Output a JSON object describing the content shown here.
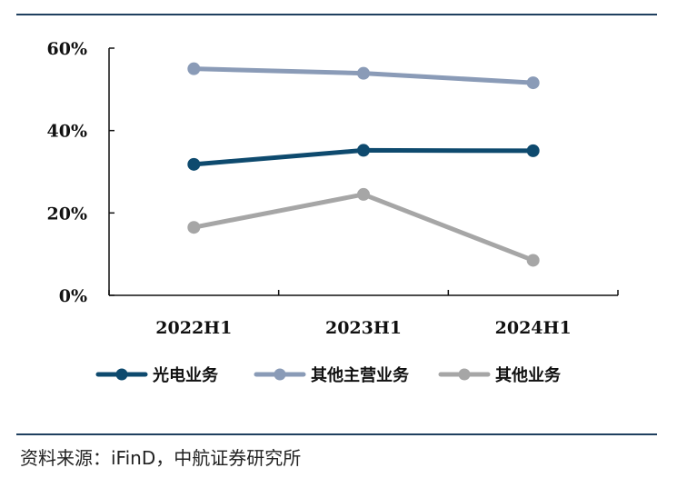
{
  "chart_data": {
    "type": "line",
    "categories": [
      "2022H1",
      "2023H1",
      "2024H1"
    ],
    "ylim": [
      0,
      60
    ],
    "yticks": [
      "0%",
      "20%",
      "40%",
      "60%"
    ],
    "ytick_values": [
      0,
      20,
      40,
      60
    ],
    "grid": false,
    "legend_position": "bottom",
    "series": [
      {
        "name": "光电业务",
        "values": [
          31.8,
          35.2,
          35.1
        ],
        "color": "#0e4a6e"
      },
      {
        "name": "其他主营业务",
        "values": [
          55.0,
          53.9,
          51.6
        ],
        "color": "#8a9bb7"
      },
      {
        "name": "其他业务",
        "values": [
          16.5,
          24.5,
          8.5
        ],
        "color": "#a6a6a6"
      }
    ]
  },
  "footer": {
    "source": "资料来源：iFinD，中航证券研究所"
  },
  "colors": {
    "rule": "#1f3f5f",
    "axis": "#111111"
  }
}
